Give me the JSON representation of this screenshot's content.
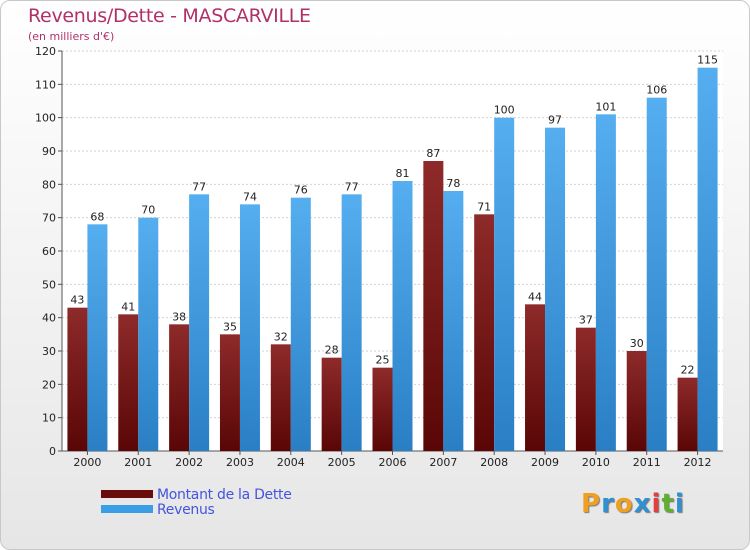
{
  "title": "Revenus/Dette - MASCARVILLE",
  "subtitle": "(en milliers d'€)",
  "logo": {
    "letters": [
      "P",
      "r",
      "o",
      "x",
      "i",
      "t",
      "i"
    ],
    "colors": [
      "#f0a020",
      "#3090d0",
      "#f0a020",
      "#3090d0",
      "#e04040",
      "#60b030",
      "#3090d0"
    ]
  },
  "colors": {
    "debt": "#7a1414",
    "revenue": "#3a9ee6"
  },
  "chart_data": {
    "type": "bar",
    "title": "Revenus/Dette - MASCARVILLE",
    "subtitle": "(en milliers d'€)",
    "categories": [
      "2000",
      "2001",
      "2002",
      "2003",
      "2004",
      "2005",
      "2006",
      "2007",
      "2008",
      "2009",
      "2010",
      "2011",
      "2012"
    ],
    "series": [
      {
        "name": "Montant de la Dette",
        "values": [
          43,
          41,
          38,
          35,
          32,
          28,
          25,
          87,
          71,
          44,
          37,
          30,
          22
        ],
        "color": "#7a1414"
      },
      {
        "name": "Revenus",
        "values": [
          68,
          70,
          77,
          74,
          76,
          77,
          81,
          78,
          100,
          97,
          101,
          106,
          115
        ],
        "color": "#3a9ee6"
      }
    ],
    "ylim": [
      0,
      120
    ],
    "yticks": [
      0,
      10,
      20,
      30,
      40,
      50,
      60,
      70,
      80,
      90,
      100,
      110,
      120
    ],
    "grid": true,
    "legend_position": "bottom-left"
  }
}
